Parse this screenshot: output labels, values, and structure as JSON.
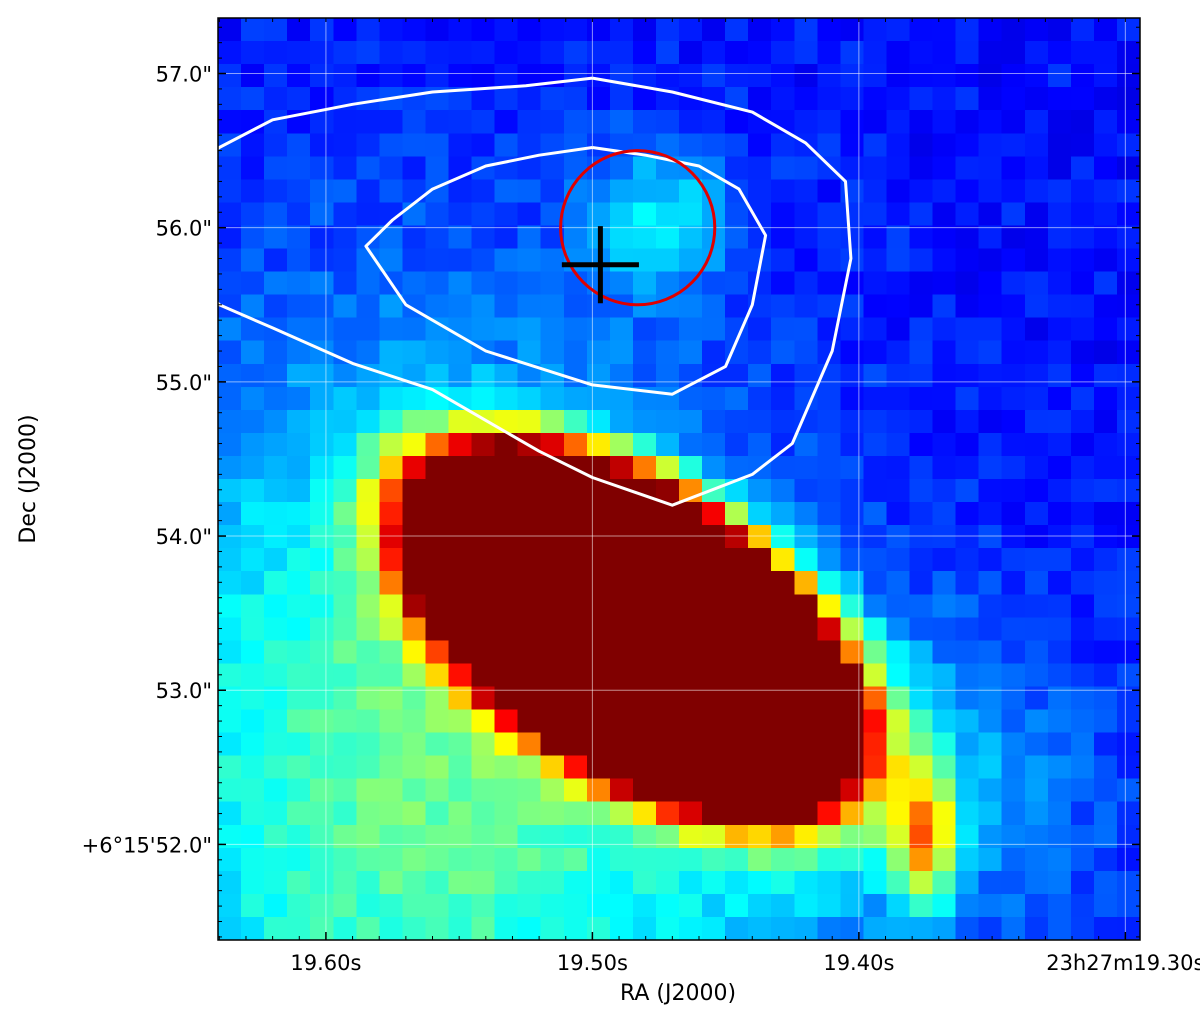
{
  "chart_data": {
    "type": "heatmap",
    "title": "",
    "xlabel": "RA (J2000)",
    "ylabel": "Dec (J2000)",
    "xlim": [
      19.6405,
      19.2945
    ],
    "ylim": [
      51.38,
      57.36
    ],
    "x_unit": "seconds of RA past 23h27m",
    "y_unit": "arcsec of Dec past +6°15'",
    "grid": true,
    "colormap": "jet",
    "x_ticks": [
      {
        "value": 19.6,
        "label": "19.60s"
      },
      {
        "value": 19.5,
        "label": "19.50s"
      },
      {
        "value": 19.4,
        "label": "19.40s"
      },
      {
        "value": 19.3,
        "label": "23h27m19.30s"
      }
    ],
    "y_ticks": [
      {
        "value": 57.0,
        "label": "57.0\""
      },
      {
        "value": 56.0,
        "label": "56.0\""
      },
      {
        "value": 55.0,
        "label": "55.0\""
      },
      {
        "value": 54.0,
        "label": "54.0\""
      },
      {
        "value": 53.0,
        "label": "53.0\""
      },
      {
        "value": 52.0,
        "label": "+6°15'52.0\""
      }
    ],
    "background_field": {
      "baseline": 0.14,
      "blobs": [
        {
          "ra": 19.475,
          "dec": 56.05,
          "s_ra": 0.018,
          "s_dec": 0.33,
          "amp": 0.2
        },
        {
          "ra": 19.565,
          "dec": 52.5,
          "s_ra": 0.09,
          "s_dec": 1.9,
          "amp": 0.34
        },
        {
          "ra": 19.4,
          "dec": 52.4,
          "s_ra": 0.06,
          "s_dec": 0.7,
          "amp": 0.18
        },
        {
          "ra": 19.375,
          "dec": 52.05,
          "s_ra": 0.008,
          "s_dec": 0.3,
          "amp": 0.45
        }
      ],
      "core_ellipse": {
        "ra": 19.485,
        "dec": 53.4,
        "half_length_ra": 0.1,
        "half_width_ra": 0.053,
        "angle_deg": 34,
        "peak": 1.0,
        "edge_width": 0.5
      }
    },
    "contours": [
      {
        "name": "outer",
        "color": "#ffffff",
        "points": [
          [
            19.5,
            56.97
          ],
          [
            19.525,
            56.92
          ],
          [
            19.56,
            56.88
          ],
          [
            19.59,
            56.8
          ],
          [
            19.62,
            56.7
          ],
          [
            19.64,
            56.52
          ],
          [
            19.655,
            56.33
          ],
          [
            19.66,
            55.9
          ],
          [
            19.65,
            55.7
          ],
          [
            19.64,
            55.5
          ],
          [
            19.62,
            55.35
          ],
          [
            19.59,
            55.12
          ],
          [
            19.56,
            54.95
          ],
          [
            19.54,
            54.75
          ],
          [
            19.52,
            54.55
          ],
          [
            19.5,
            54.38
          ],
          [
            19.47,
            54.2
          ],
          [
            19.44,
            54.4
          ],
          [
            19.425,
            54.6
          ],
          [
            19.41,
            55.2
          ],
          [
            19.403,
            55.8
          ],
          [
            19.405,
            56.3
          ],
          [
            19.42,
            56.55
          ],
          [
            19.44,
            56.75
          ],
          [
            19.47,
            56.88
          ],
          [
            19.5,
            56.97
          ]
        ]
      },
      {
        "name": "inner",
        "color": "#ffffff",
        "points": [
          [
            19.5,
            56.52
          ],
          [
            19.48,
            56.47
          ],
          [
            19.46,
            56.4
          ],
          [
            19.445,
            56.25
          ],
          [
            19.435,
            55.95
          ],
          [
            19.44,
            55.5
          ],
          [
            19.45,
            55.1
          ],
          [
            19.47,
            54.92
          ],
          [
            19.5,
            54.98
          ],
          [
            19.54,
            55.2
          ],
          [
            19.57,
            55.5
          ],
          [
            19.585,
            55.88
          ],
          [
            19.575,
            56.05
          ],
          [
            19.56,
            56.25
          ],
          [
            19.54,
            56.4
          ],
          [
            19.52,
            56.47
          ],
          [
            19.5,
            56.52
          ]
        ]
      }
    ],
    "markers": [
      {
        "type": "circle",
        "color": "#e00000",
        "ra": 19.483,
        "dec": 56.0,
        "radius_arcsec": 0.5
      },
      {
        "type": "cross",
        "color": "#000000",
        "ra": 19.497,
        "dec": 55.76,
        "size_arcsec": 0.25
      }
    ]
  }
}
